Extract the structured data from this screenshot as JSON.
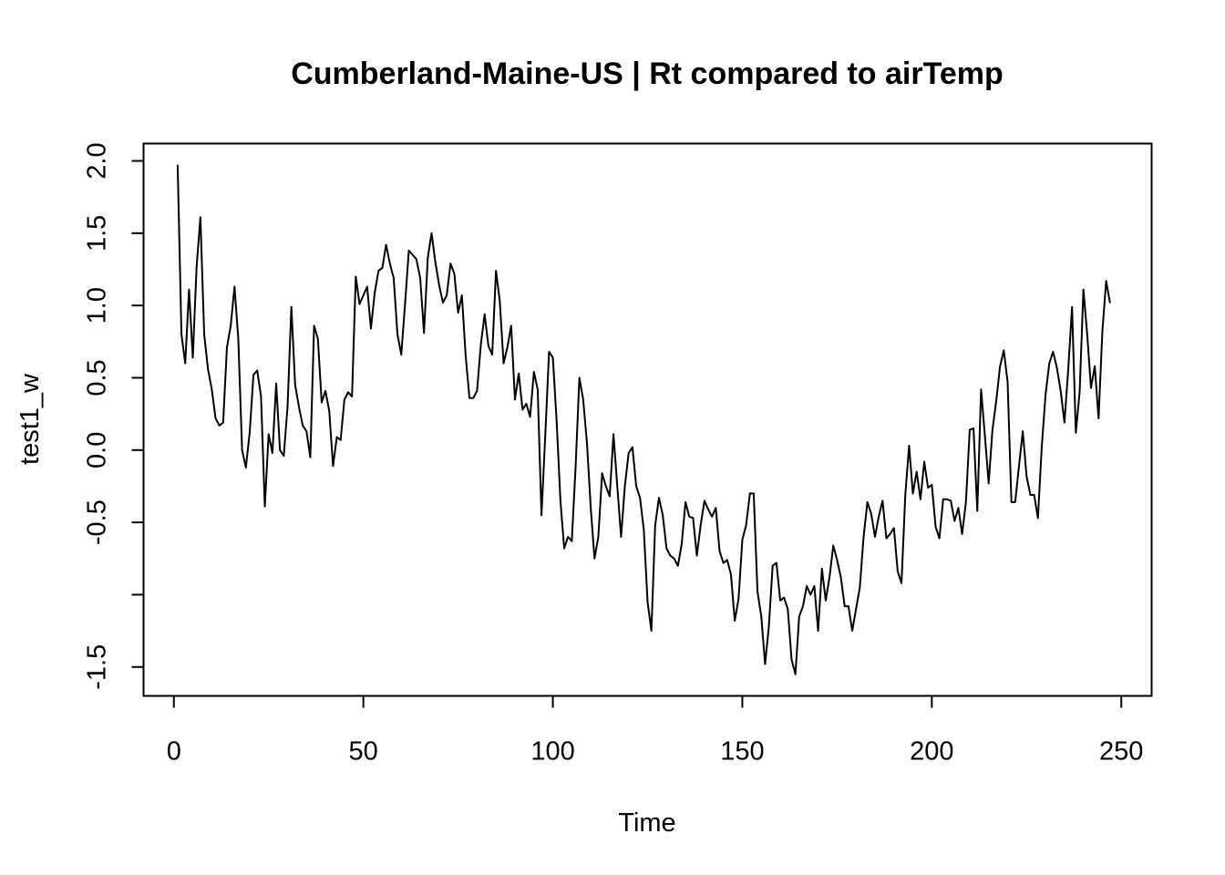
{
  "chart_data": {
    "type": "line",
    "title": "Cumberland-Maine-US | Rt compared to airTemp",
    "xlabel": "Time",
    "ylabel": "test1_w",
    "xlim": [
      -8,
      258
    ],
    "ylim": [
      -1.7,
      2.12
    ],
    "x_ticks": [
      0,
      50,
      100,
      150,
      200,
      250
    ],
    "x_tick_labels": [
      "0",
      "50",
      "100",
      "150",
      "200",
      "250"
    ],
    "y_ticks": [
      -1.5,
      -1.0,
      -0.5,
      0.0,
      0.5,
      1.0,
      1.5,
      2.0
    ],
    "y_tick_labels": [
      "-1.5",
      "",
      "-0.5",
      "0.0",
      "0.5",
      "1.0",
      "1.5",
      "2.0"
    ],
    "grid": false,
    "legend": "none",
    "line_color": "#000000",
    "series": [
      {
        "x_start": 1,
        "values": [
          1.97,
          0.8,
          0.6,
          1.11,
          0.64,
          1.27,
          1.61,
          0.8,
          0.56,
          0.42,
          0.22,
          0.17,
          0.19,
          0.71,
          0.86,
          1.13,
          0.77,
          0.0,
          -0.12,
          0.12,
          0.52,
          0.55,
          0.37,
          -0.39,
          0.11,
          -0.02,
          0.46,
          0.0,
          -0.04,
          0.3,
          0.99,
          0.45,
          0.3,
          0.17,
          0.13,
          -0.05,
          0.86,
          0.77,
          0.33,
          0.41,
          0.27,
          -0.11,
          0.09,
          0.07,
          0.35,
          0.4,
          0.37,
          1.2,
          1.01,
          1.07,
          1.13,
          0.84,
          1.09,
          1.24,
          1.26,
          1.42,
          1.29,
          1.19,
          0.8,
          0.66,
          1.01,
          1.38,
          1.35,
          1.32,
          1.19,
          0.81,
          1.33,
          1.5,
          1.3,
          1.14,
          1.02,
          1.07,
          1.29,
          1.22,
          0.95,
          1.07,
          0.65,
          0.36,
          0.36,
          0.41,
          0.73,
          0.94,
          0.72,
          0.66,
          1.24,
          1.03,
          0.6,
          0.71,
          0.86,
          0.35,
          0.53,
          0.28,
          0.32,
          0.23,
          0.54,
          0.42,
          -0.45,
          0.1,
          0.68,
          0.64,
          0.2,
          -0.35,
          -0.68,
          -0.6,
          -0.63,
          -0.12,
          0.5,
          0.35,
          0.05,
          -0.4,
          -0.75,
          -0.6,
          -0.16,
          -0.25,
          -0.32,
          0.11,
          -0.25,
          -0.6,
          -0.25,
          -0.02,
          0.02,
          -0.25,
          -0.33,
          -0.55,
          -1.05,
          -1.25,
          -0.52,
          -0.33,
          -0.45,
          -0.68,
          -0.73,
          -0.75,
          -0.8,
          -0.65,
          -0.36,
          -0.46,
          -0.47,
          -0.73,
          -0.52,
          -0.35,
          -0.41,
          -0.46,
          -0.4,
          -0.7,
          -0.78,
          -0.76,
          -0.86,
          -1.18,
          -1.03,
          -0.62,
          -0.52,
          -0.3,
          -0.3,
          -0.98,
          -1.15,
          -1.48,
          -1.22,
          -0.8,
          -0.78,
          -1.04,
          -1.02,
          -1.1,
          -1.45,
          -1.55,
          -1.15,
          -1.08,
          -0.94,
          -1.0,
          -0.94,
          -1.25,
          -0.82,
          -1.04,
          -0.88,
          -0.66,
          -0.76,
          -0.88,
          -1.08,
          -1.08,
          -1.25,
          -1.1,
          -0.95,
          -0.6,
          -0.36,
          -0.44,
          -0.6,
          -0.46,
          -0.35,
          -0.61,
          -0.58,
          -0.54,
          -0.84,
          -0.92,
          -0.31,
          0.03,
          -0.3,
          -0.15,
          -0.34,
          -0.08,
          -0.26,
          -0.24,
          -0.53,
          -0.61,
          -0.34,
          -0.34,
          -0.35,
          -0.49,
          -0.4,
          -0.58,
          -0.36,
          0.14,
          0.15,
          -0.42,
          0.42,
          0.1,
          -0.23,
          0.14,
          0.34,
          0.58,
          0.69,
          0.47,
          -0.36,
          -0.36,
          -0.11,
          0.13,
          -0.18,
          -0.31,
          -0.31,
          -0.47,
          0.02,
          0.38,
          0.6,
          0.68,
          0.57,
          0.41,
          0.19,
          0.56,
          0.99,
          0.12,
          0.4,
          1.11,
          0.8,
          0.43,
          0.58,
          0.22,
          0.82,
          1.17,
          1.02
        ]
      }
    ]
  }
}
